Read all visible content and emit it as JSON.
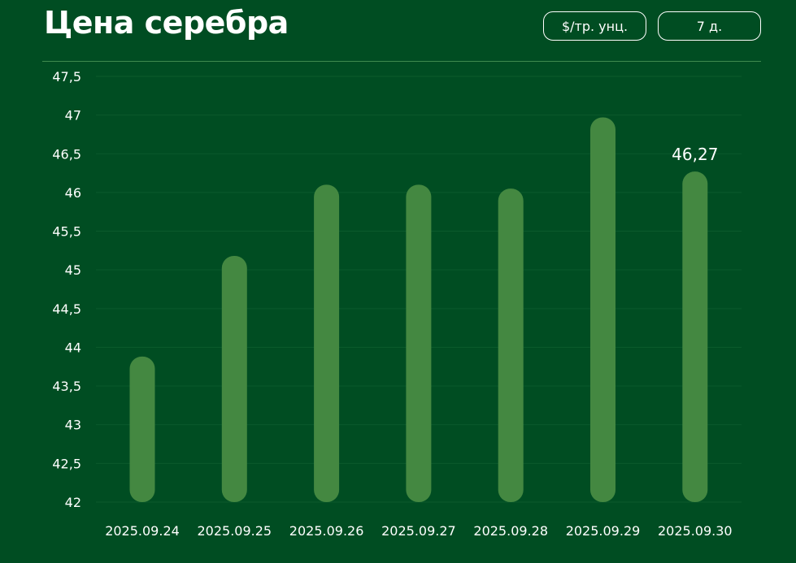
{
  "title": "Цена серебра",
  "controls": {
    "unit_label": "$/тр. унц.",
    "range_label": "7 д."
  },
  "colors": {
    "background": "#004d22",
    "bar": "#448841",
    "grid": "#0b5a2c",
    "text": "#ffffff"
  },
  "chart_data": {
    "type": "bar",
    "title": "Цена серебра",
    "xlabel": "",
    "ylabel": "",
    "categories": [
      "2025.09.24",
      "2025.09.25",
      "2025.09.26",
      "2025.09.27",
      "2025.09.28",
      "2025.09.29",
      "2025.09.30"
    ],
    "values": [
      43.88,
      45.18,
      46.1,
      46.1,
      46.05,
      46.97,
      46.27
    ],
    "ylim": [
      42,
      47.5
    ],
    "yticks": [
      "42",
      "42,5",
      "43",
      "43,5",
      "44",
      "44,5",
      "45",
      "45,5",
      "46",
      "46,5",
      "47",
      "47,5"
    ],
    "data_labels": [
      {
        "index": 6,
        "text": "46,27"
      }
    ],
    "grid": true,
    "legend": "none"
  }
}
